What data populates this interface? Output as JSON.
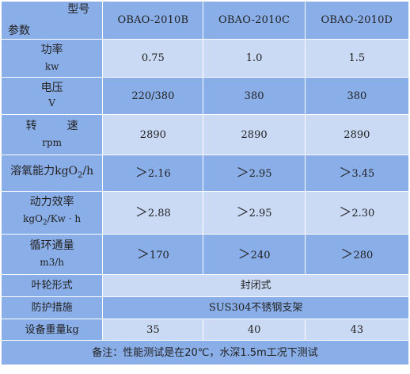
{
  "header": {
    "corner_top": "型号",
    "corner_bottom": "参数",
    "models": [
      "OBAO-2010B",
      "OBAO-2010C",
      "OBAO-2010D"
    ]
  },
  "rows": {
    "power": {
      "label_zh": "功率",
      "label_en": "kw",
      "values": [
        "0.75",
        "1.0",
        "1.5"
      ]
    },
    "voltage": {
      "label_zh": "电压",
      "label_en": "V",
      "values": [
        "220/380",
        "380",
        "380"
      ]
    },
    "speed": {
      "label_zh_1": "转",
      "label_zh_2": "速",
      "label_en": "rpm",
      "values": [
        "2890",
        "2890",
        "2890"
      ]
    },
    "oxygen": {
      "label_zh": "溶氧能力kgO",
      "label_sub": "2",
      "label_tail": "/h",
      "values": [
        "2.16",
        "2.95",
        "3.45"
      ]
    },
    "efficiency": {
      "label_zh": "动力效率",
      "label_en_head": "kgO",
      "label_sub": "2",
      "label_en_tail": "/Kw · h",
      "values": [
        "2.88",
        "2.95",
        "2.30"
      ]
    },
    "flow": {
      "label_zh": "循环通量",
      "label_en": "m3/h",
      "values": [
        "170",
        "240",
        "280"
      ]
    },
    "impeller": {
      "label": "叶轮形式",
      "value": "封闭式"
    },
    "protection": {
      "label": "防护措施",
      "value": "SUS304不锈钢支架"
    },
    "weight": {
      "label": "设备重量kg",
      "values": [
        "35",
        "40",
        "43"
      ]
    }
  },
  "gt_symbol": "＞",
  "note": "备注：性能测试是在20℃，水深1.5m工况下测试"
}
